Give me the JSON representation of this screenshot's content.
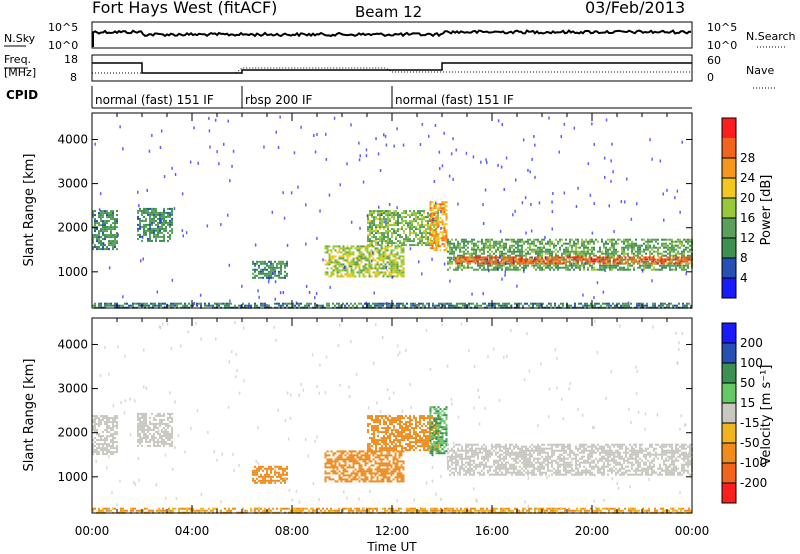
{
  "header": {
    "title": "Fort Hays West (fitACF)",
    "beam": "Beam 12",
    "date": "03/Feb/2013"
  },
  "top_panels": {
    "nsky_label": "N.Sky",
    "nsky_ticks": [
      "10^5",
      "10^0"
    ],
    "nsearch_label": "N.Search",
    "nsearch_ticks": [
      "10^5",
      "10^0"
    ],
    "freq_label_1": "Freq.",
    "freq_label_2": "[MHz]",
    "freq_ticks": [
      "18",
      "8"
    ],
    "nave_label": "Nave",
    "nave_ticks": [
      "60",
      "0"
    ],
    "cpid_label": "CPID",
    "cpid_segments": [
      {
        "label": "normal (fast) 151 IF",
        "start_h": 0,
        "end_h": 6
      },
      {
        "label": "rbsp 200 IF",
        "start_h": 6,
        "end_h": 12
      },
      {
        "label": "normal (fast) 151 IF",
        "start_h": 12,
        "end_h": 24
      }
    ]
  },
  "colors": {
    "power_scale": [
      "#1a1aff",
      "#2850b4",
      "#3c9050",
      "#5aa05a",
      "#96c83c",
      "#f0c81e",
      "#f5961e",
      "#f0641e",
      "#ff1e1e"
    ],
    "velocity_scale": [
      "#1a1aff",
      "#2850b4",
      "#3c9050",
      "#64c864",
      "#c8c8c0",
      "#f0b41e",
      "#f08c1e",
      "#f0641e",
      "#ff1e1e"
    ]
  },
  "chart_data": [
    {
      "type": "heatmap",
      "name": "power",
      "ylabel": "Slant Range [km]",
      "xlabel": "",
      "xlim": [
        0,
        24
      ],
      "ylim": [
        180,
        4600
      ],
      "yticks": [
        1000,
        2000,
        3000,
        4000
      ],
      "colorbar_label": "Power [dB]",
      "colorbar_ticks": [
        "4",
        "8",
        "12",
        "16",
        "20",
        "24",
        "28"
      ],
      "regions": [
        {
          "t0": 0.0,
          "t1": 1.0,
          "r0": 1500,
          "r1": 2400,
          "value": 10
        },
        {
          "t0": 1.8,
          "t1": 3.2,
          "r0": 1700,
          "r1": 2450,
          "value": 10
        },
        {
          "t0": 6.4,
          "t1": 7.8,
          "r0": 850,
          "r1": 1250,
          "value": 10
        },
        {
          "t0": 9.3,
          "t1": 12.5,
          "r0": 900,
          "r1": 1600,
          "value": 16
        },
        {
          "t0": 11.0,
          "t1": 13.8,
          "r0": 1600,
          "r1": 2400,
          "value": 14
        },
        {
          "t0": 13.5,
          "t1": 14.2,
          "r0": 1500,
          "r1": 2600,
          "value": 22
        },
        {
          "t0": 14.2,
          "t1": 24.0,
          "r0": 1050,
          "r1": 1750,
          "value": 12
        },
        {
          "t0": 14.5,
          "t1": 24.0,
          "r0": 1200,
          "r1": 1350,
          "value": 26
        },
        {
          "t0": 0.0,
          "t1": 24.0,
          "r0": 180,
          "r1": 300,
          "value": 8
        }
      ]
    },
    {
      "type": "heatmap",
      "name": "velocity",
      "ylabel": "Slant Range [km]",
      "xlabel": "Time UT",
      "xlim": [
        0,
        24
      ],
      "ylim": [
        180,
        4600
      ],
      "yticks": [
        1000,
        2000,
        3000,
        4000
      ],
      "xticks": [
        "00:00",
        "04:00",
        "08:00",
        "12:00",
        "16:00",
        "20:00",
        "00:00"
      ],
      "colorbar_label": "Velocity [m s⁻¹]",
      "colorbar_ticks": [
        "200",
        "100",
        "50",
        "15",
        "-15",
        "-50",
        "-100",
        "-200"
      ],
      "regions": [
        {
          "t0": 0.0,
          "t1": 1.0,
          "r0": 1500,
          "r1": 2400,
          "value": 0
        },
        {
          "t0": 1.8,
          "t1": 3.2,
          "r0": 1700,
          "r1": 2450,
          "value": 0
        },
        {
          "t0": 6.4,
          "t1": 7.8,
          "r0": 850,
          "r1": 1250,
          "value": -40
        },
        {
          "t0": 9.3,
          "t1": 12.5,
          "r0": 900,
          "r1": 1600,
          "value": -40
        },
        {
          "t0": 11.0,
          "t1": 13.8,
          "r0": 1600,
          "r1": 2400,
          "value": -40
        },
        {
          "t0": 13.5,
          "t1": 14.2,
          "r0": 1500,
          "r1": 2600,
          "value": 30
        },
        {
          "t0": 14.2,
          "t1": 24.0,
          "r0": 1050,
          "r1": 1750,
          "value": 0
        },
        {
          "t0": 0.0,
          "t1": 24.0,
          "r0": 180,
          "r1": 300,
          "value": -30
        }
      ]
    }
  ]
}
